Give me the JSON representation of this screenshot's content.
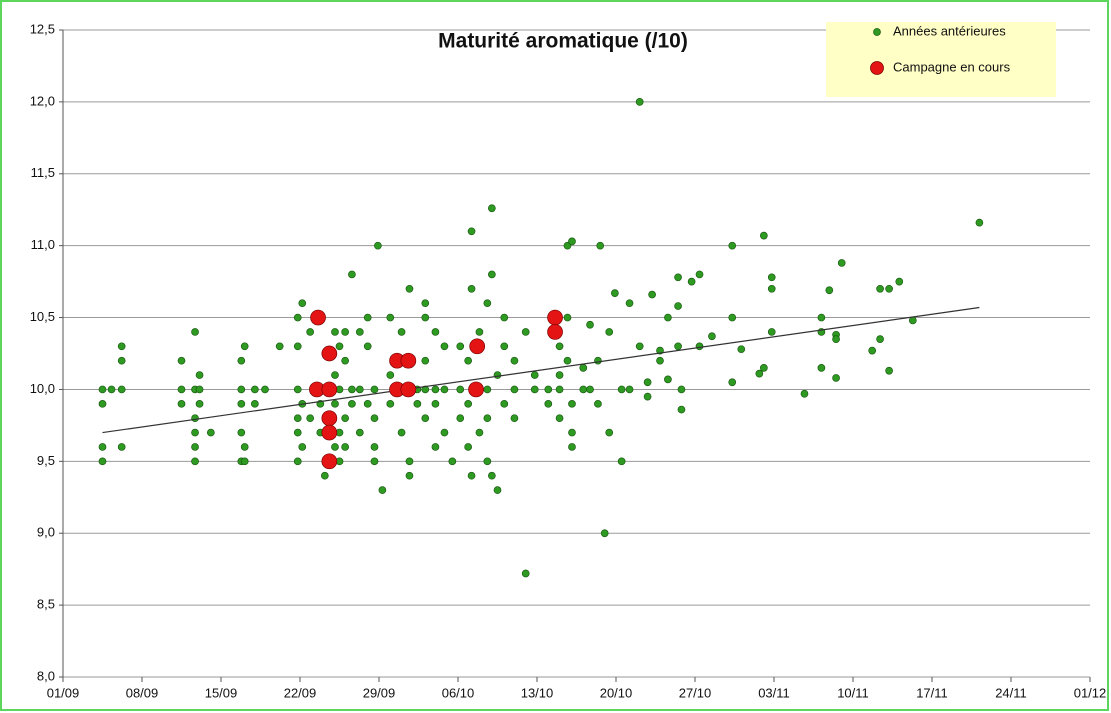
{
  "chart_data": {
    "type": "scatter",
    "title": "Maturité aromatique (/10)",
    "xlim": [
      0,
      91
    ],
    "ylim": [
      8.0,
      12.5
    ],
    "xticks": [
      {
        "value": 0,
        "label": "01/09"
      },
      {
        "value": 7,
        "label": "08/09"
      },
      {
        "value": 14,
        "label": "15/09"
      },
      {
        "value": 21,
        "label": "22/09"
      },
      {
        "value": 28,
        "label": "29/09"
      },
      {
        "value": 35,
        "label": "06/10"
      },
      {
        "value": 42,
        "label": "13/10"
      },
      {
        "value": 49,
        "label": "20/10"
      },
      {
        "value": 56,
        "label": "27/10"
      },
      {
        "value": 63,
        "label": "03/11"
      },
      {
        "value": 70,
        "label": "10/11"
      },
      {
        "value": 77,
        "label": "17/11"
      },
      {
        "value": 84,
        "label": "24/11"
      },
      {
        "value": 91,
        "label": "01/12"
      }
    ],
    "yticks": [
      {
        "value": 8.0,
        "label": "8,0"
      },
      {
        "value": 8.5,
        "label": "8,5"
      },
      {
        "value": 9.0,
        "label": "9,0"
      },
      {
        "value": 9.5,
        "label": "9,5"
      },
      {
        "value": 10.0,
        "label": "10,0"
      },
      {
        "value": 10.5,
        "label": "10,5"
      },
      {
        "value": 11.0,
        "label": "11,0"
      },
      {
        "value": 11.5,
        "label": "11,5"
      },
      {
        "value": 12.0,
        "label": "12,0"
      },
      {
        "value": 12.5,
        "label": "12,5"
      }
    ],
    "grid": true,
    "legend": "top-right",
    "series": [
      {
        "name": "Années antérieures",
        "color": "#2e9a22",
        "size": 3.5,
        "x": [
          3.5,
          3.5,
          3.5,
          3.5,
          4.3,
          5.2,
          5.2,
          5.2,
          5.2,
          10.5,
          10.5,
          10.5,
          11.7,
          11.7,
          11.7,
          11.7,
          11.7,
          11.7,
          12.1,
          12.1,
          12.1,
          13.1,
          15.8,
          15.8,
          15.8,
          15.8,
          15.8,
          16.1,
          16.1,
          16.1,
          17.0,
          17.0,
          17.9,
          19.2,
          20.8,
          20.8,
          20.8,
          20.8,
          20.8,
          20.8,
          21.2,
          21.2,
          21.2,
          21.9,
          21.9,
          22.8,
          22.8,
          23.2,
          24.1,
          24.1,
          24.1,
          24.1,
          24.5,
          24.5,
          24.5,
          24.5,
          25.0,
          25.0,
          25.0,
          25.0,
          25.6,
          25.6,
          25.6,
          26.3,
          26.3,
          26.3,
          27.0,
          27.0,
          27.0,
          27.6,
          27.6,
          27.6,
          27.6,
          27.9,
          28.3,
          29.0,
          29.0,
          29.0,
          30.0,
          30.0,
          30.0,
          30.7,
          30.7,
          30.7,
          31.4,
          31.4,
          32.1,
          32.1,
          32.1,
          32.1,
          32.1,
          33.0,
          33.0,
          33.0,
          33.0,
          33.8,
          33.8,
          33.8,
          34.5,
          35.2,
          35.2,
          35.2,
          35.9,
          35.9,
          35.9,
          36.2,
          36.2,
          36.2,
          36.9,
          36.9,
          37.6,
          37.6,
          37.6,
          37.6,
          38.0,
          38.0,
          38.0,
          38.5,
          38.5,
          39.1,
          39.1,
          39.1,
          40.0,
          40.0,
          40.0,
          41.0,
          41.0,
          41.8,
          41.8,
          43.0,
          43.0,
          44.0,
          44.0,
          44.0,
          44.0,
          44.7,
          44.7,
          44.7,
          45.1,
          45.1,
          45.1,
          45.1,
          46.1,
          46.1,
          46.7,
          46.7,
          47.4,
          47.4,
          47.6,
          48.0,
          48.4,
          48.4,
          48.9,
          49.5,
          49.5,
          50.2,
          50.2,
          51.1,
          51.1,
          51.8,
          51.8,
          52.2,
          52.9,
          52.9,
          53.6,
          53.6,
          54.5,
          54.5,
          54.5,
          54.8,
          54.8,
          55.7,
          56.4,
          56.4,
          57.5,
          59.3,
          59.3,
          59.3,
          60.1,
          61.7,
          62.1,
          62.1,
          62.8,
          62.8,
          62.8,
          65.7,
          67.2,
          67.2,
          67.2,
          67.9,
          68.5,
          68.5,
          68.5,
          69.0,
          71.7,
          72.4,
          72.4,
          73.2,
          73.2,
          74.1,
          75.3,
          81.2
        ],
        "values": [
          10.0,
          9.9,
          9.6,
          9.5,
          10.0,
          10.3,
          10.2,
          10.0,
          9.6,
          10.2,
          10.0,
          9.9,
          10.4,
          10.0,
          9.8,
          9.7,
          9.6,
          9.5,
          10.1,
          10.0,
          9.9,
          9.7,
          10.2,
          10.0,
          9.9,
          9.7,
          9.5,
          10.3,
          9.6,
          9.5,
          10.0,
          9.9,
          10.0,
          10.3,
          10.5,
          10.3,
          10.0,
          9.8,
          9.7,
          9.5,
          10.6,
          9.9,
          9.6,
          10.4,
          9.8,
          9.9,
          9.7,
          9.4,
          10.4,
          10.1,
          9.9,
          9.6,
          10.3,
          10.0,
          9.7,
          9.5,
          10.4,
          10.2,
          9.8,
          9.6,
          10.8,
          10.0,
          9.9,
          10.4,
          10.0,
          9.7,
          10.5,
          10.3,
          9.9,
          10.0,
          9.8,
          9.6,
          9.5,
          11.0,
          9.3,
          10.5,
          10.1,
          9.9,
          10.4,
          10.0,
          9.7,
          10.7,
          9.5,
          9.4,
          10.0,
          9.9,
          10.6,
          10.5,
          10.2,
          10.0,
          9.8,
          10.4,
          10.0,
          9.9,
          9.6,
          10.3,
          10.0,
          9.7,
          9.5,
          10.3,
          10.0,
          9.8,
          10.2,
          9.9,
          9.6,
          11.1,
          10.7,
          9.4,
          10.4,
          9.7,
          10.6,
          10.0,
          9.8,
          9.5,
          11.26,
          10.8,
          9.4,
          9.3,
          10.1,
          10.5,
          10.3,
          9.9,
          10.0,
          9.8,
          10.2,
          8.72,
          10.4,
          10.0,
          10.1,
          10.0,
          9.9,
          10.3,
          10.1,
          9.8,
          10.0,
          11.0,
          10.5,
          10.2,
          11.03,
          9.9,
          9.7,
          9.6,
          10.0,
          10.15,
          10.45,
          10.0,
          10.2,
          9.9,
          11.0,
          9.0,
          10.4,
          9.7,
          10.67,
          9.5,
          10.0,
          10.6,
          10.0,
          12.0,
          10.3,
          10.05,
          9.95,
          10.66,
          10.27,
          10.2,
          10.5,
          10.07,
          10.78,
          10.58,
          10.3,
          9.86,
          10.0,
          10.75,
          10.8,
          10.3,
          10.37,
          11.0,
          10.5,
          10.05,
          10.28,
          10.11,
          11.07,
          10.15,
          10.78,
          10.4,
          10.7,
          9.97,
          10.5,
          10.4,
          10.15,
          10.69,
          10.38,
          10.35,
          10.08,
          10.88,
          10.27,
          10.7,
          10.35,
          10.7,
          10.13,
          10.75,
          10.48,
          11.16
        ]
      },
      {
        "name": "Campagne en cours",
        "color": "#e41414",
        "size": 7.5,
        "x": [
          22.6,
          23.6,
          22.5,
          23.6,
          23.6,
          23.6,
          23.6,
          29.6,
          30.6,
          29.6,
          30.6,
          36.7,
          36.6,
          43.6,
          43.6
        ],
        "values": [
          10.5,
          10.25,
          10.0,
          10.0,
          9.8,
          9.7,
          9.5,
          10.2,
          10.2,
          10.0,
          10.0,
          10.3,
          10.0,
          10.5,
          10.4
        ]
      }
    ],
    "trendline": {
      "color": "#333333",
      "x": [
        3.5,
        81.2
      ],
      "values": [
        9.7,
        10.57
      ]
    }
  }
}
